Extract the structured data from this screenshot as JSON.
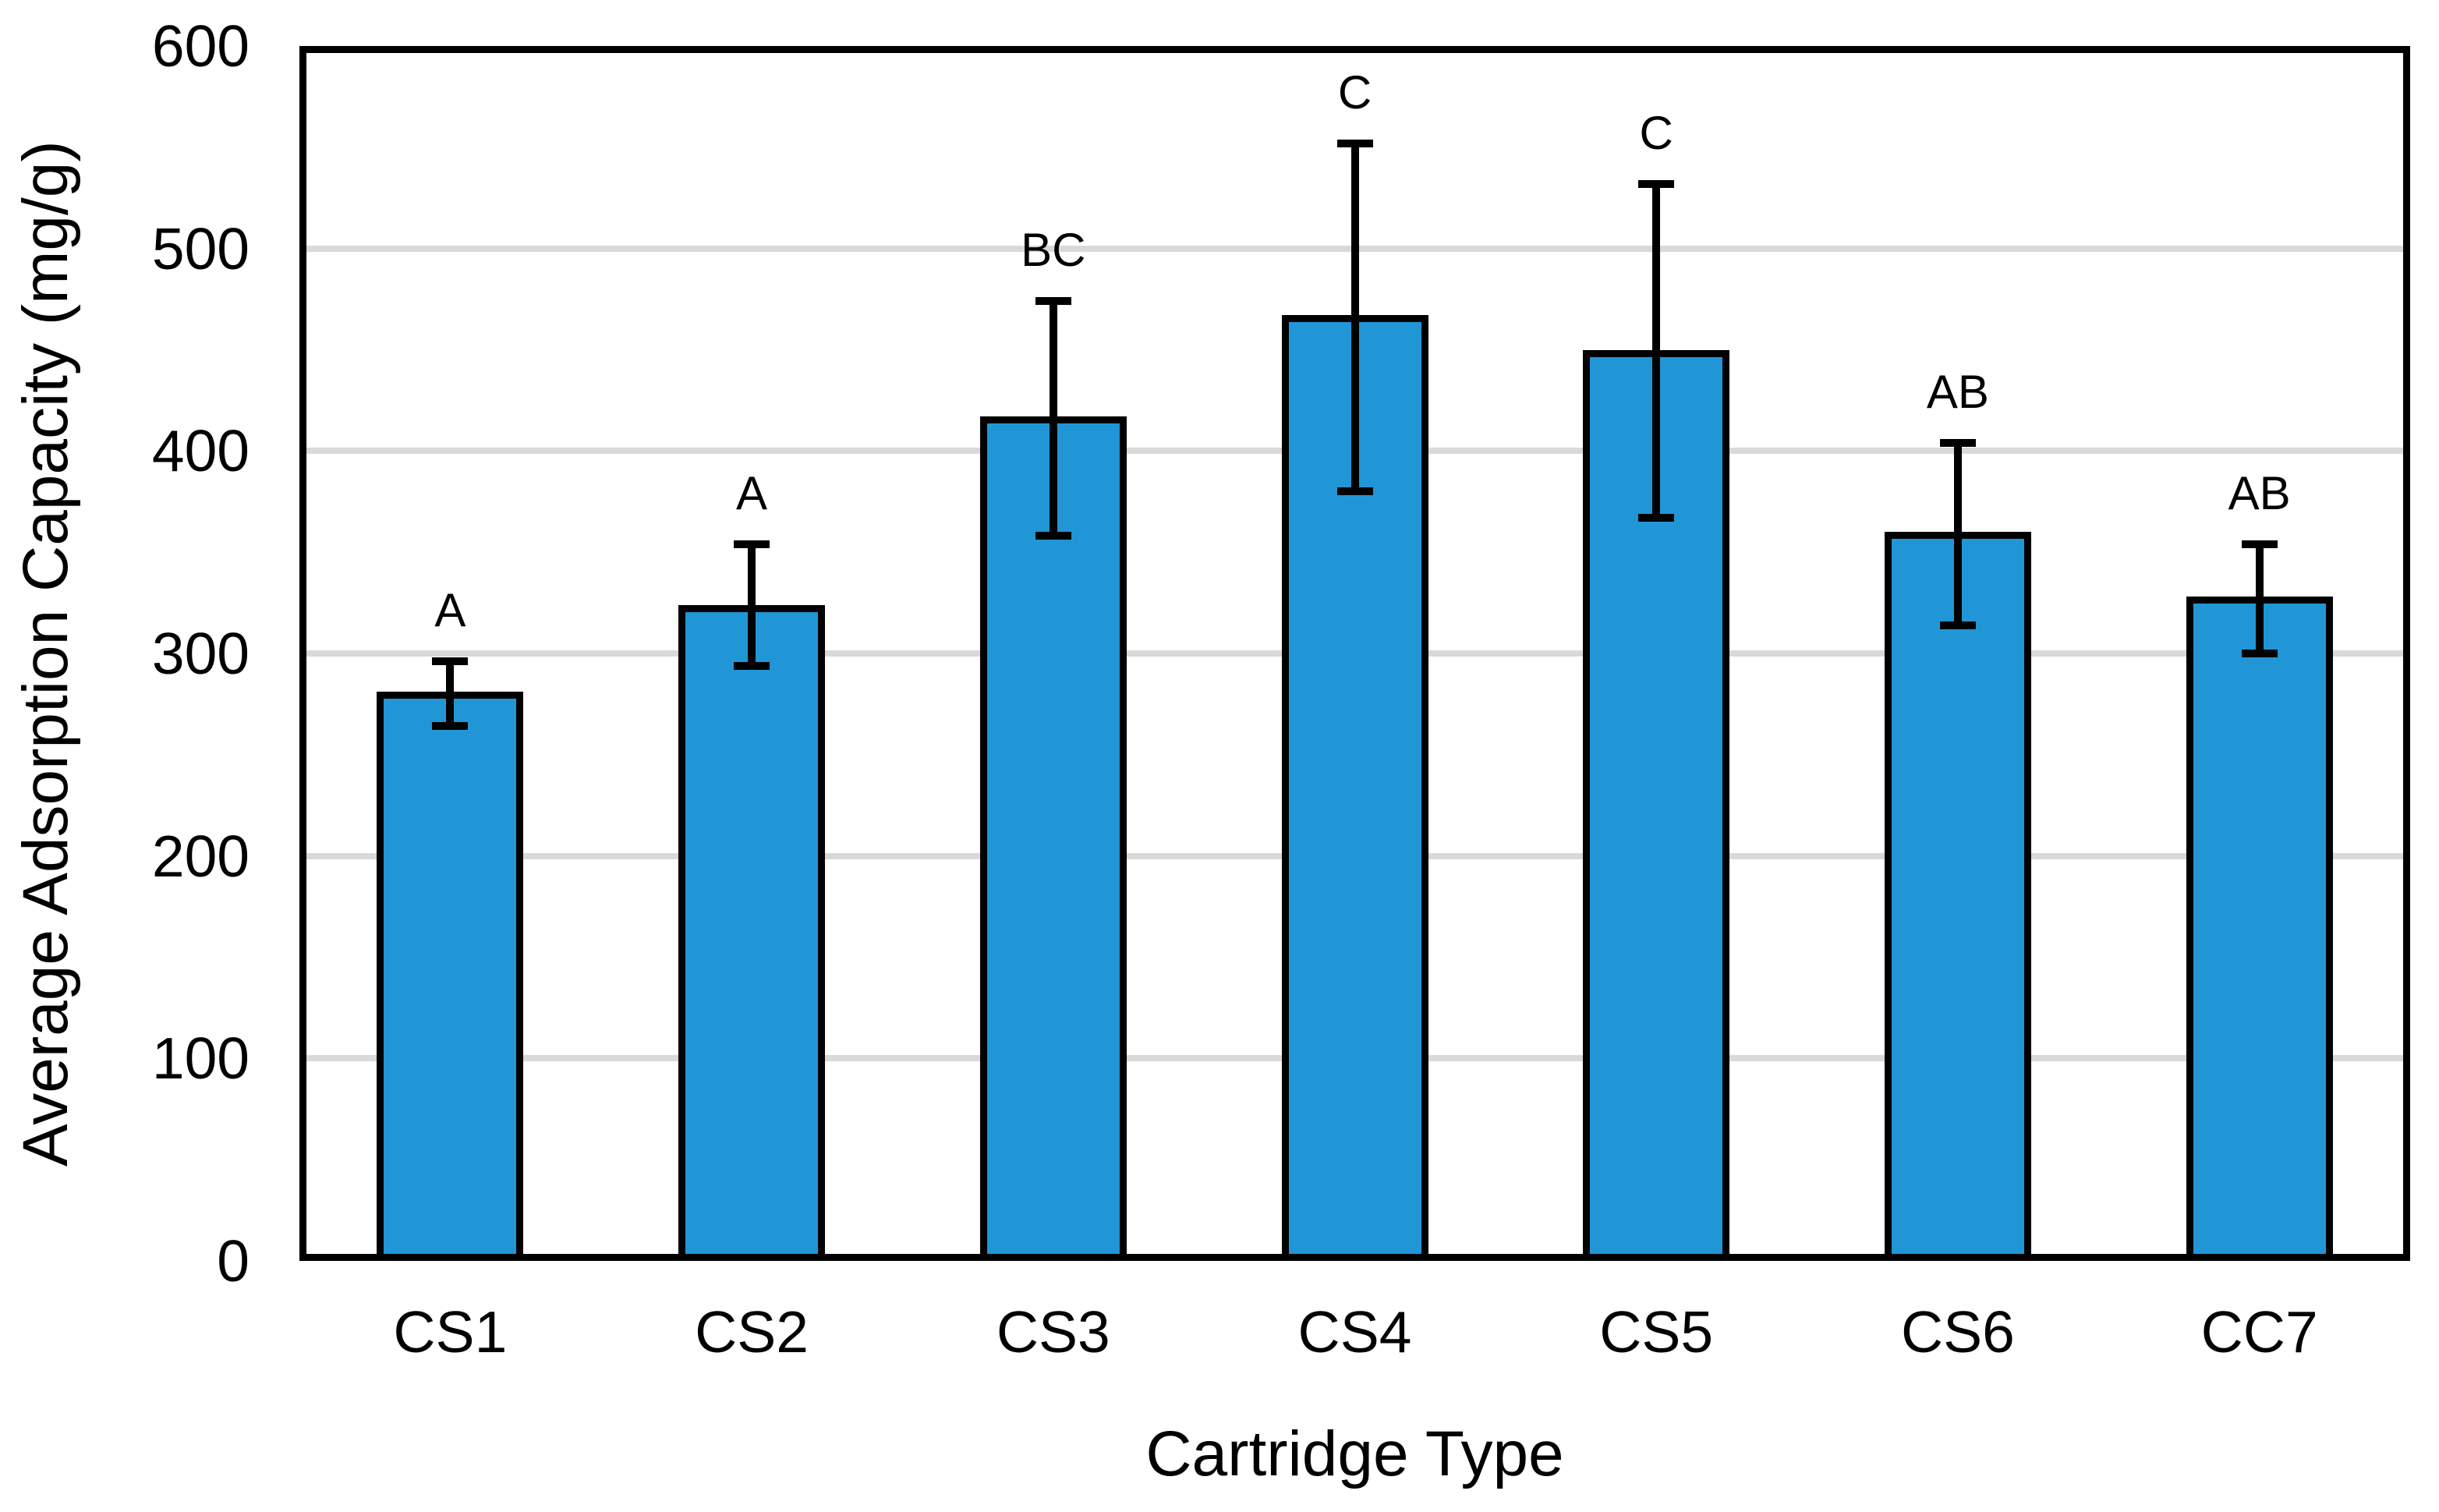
{
  "chart_data": {
    "type": "bar",
    "title": "",
    "xlabel": "Cartridge Type",
    "ylabel": "Average Adsorption Capacity (mg/g)",
    "categories": [
      "CS1",
      "CS2",
      "CS3",
      "CS4",
      "CS5",
      "CS6",
      "CC7"
    ],
    "values": [
      281,
      324,
      417,
      467,
      450,
      360,
      328
    ],
    "error_bars": {
      "upper": [
        296,
        354,
        474,
        552,
        532,
        404,
        354
      ],
      "lower": [
        264,
        294,
        358,
        380,
        367,
        314,
        300
      ]
    },
    "significance_letters": [
      "A",
      "A",
      "BC",
      "C",
      "C",
      "AB",
      "AB"
    ],
    "ylim": [
      0,
      600
    ],
    "yticks": [
      0,
      100,
      200,
      300,
      400,
      500,
      600
    ],
    "grid": true,
    "legend": "none",
    "colors": {
      "bar_fill": "#2196D6",
      "bar_border": "#000000",
      "gridline": "#D9D9D9",
      "axis": "#000000",
      "error_bar": "#000000",
      "background": "#FFFFFF"
    }
  }
}
